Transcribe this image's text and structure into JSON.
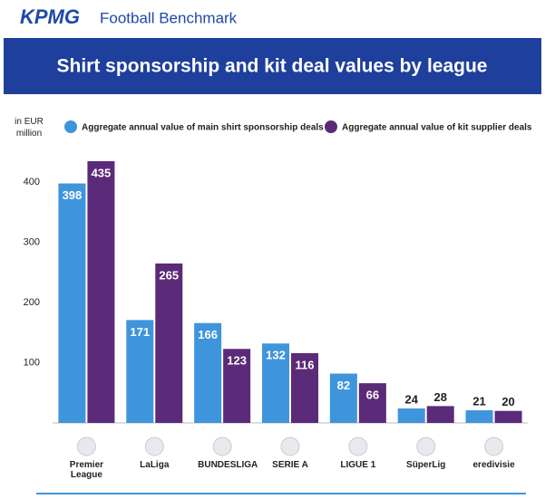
{
  "brand": {
    "logo": "KPMG",
    "name": "Football Benchmark"
  },
  "chart_data": {
    "type": "bar",
    "title": "Shirt sponsorship and kit deal values by league",
    "y_label": "in EUR million",
    "categories": [
      "Premier League",
      "LaLiga",
      "BUNDESLIGA",
      "SERIE A",
      "LIGUE 1",
      "SüperLig",
      "eredivisie"
    ],
    "series": [
      {
        "name": "Aggregate annual value of main shirt sponsorship deals",
        "color": "#3f95dc",
        "values": [
          398,
          171,
          166,
          132,
          82,
          24,
          21
        ]
      },
      {
        "name": "Aggregate annual value of kit supplier deals",
        "color": "#5b2a78",
        "values": [
          435,
          265,
          123,
          116,
          66,
          28,
          20
        ]
      }
    ],
    "ylim": [
      0,
      450
    ],
    "yticks": [
      100,
      200,
      300,
      400
    ],
    "grid": false
  }
}
